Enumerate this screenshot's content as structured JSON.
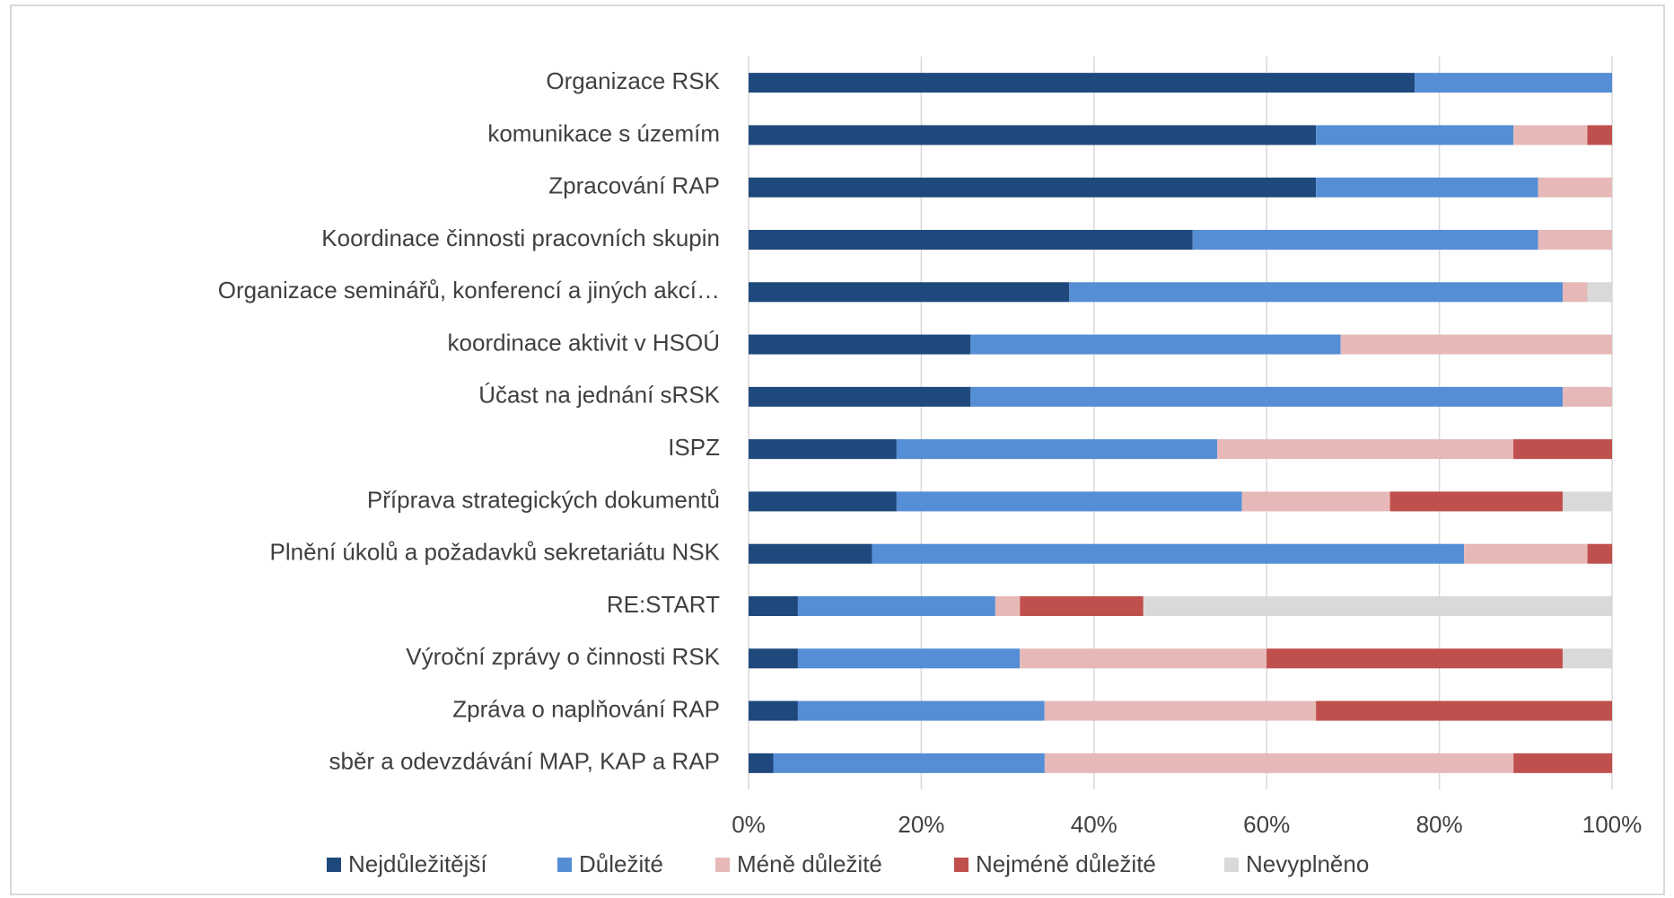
{
  "chart_data": {
    "type": "stacked_barh",
    "categories": [
      "Organizace RSK",
      "komunikace s územím",
      "Zpracování RAP",
      "Koordinace činnosti pracovních skupin",
      "Organizace seminářů, konferencí a jiných akcí…",
      "koordinace aktivit v HSOÚ",
      "Účast na jednání sRSK",
      "ISPZ",
      "Příprava strategických dokumentů",
      "Plnění úkolů a požadavků sekretariátu NSK",
      "RE:START",
      "Výroční zprávy o činnosti RSK",
      "Zpráva o naplňování RAP",
      "sběr a odevzdávání MAP, KAP a RAP"
    ],
    "series": [
      {
        "name": "Nejdůležitější",
        "color": "#1f497d",
        "values": [
          77.14,
          65.71,
          65.71,
          51.43,
          37.14,
          25.71,
          25.71,
          17.14,
          17.14,
          14.29,
          5.71,
          5.71,
          5.71,
          2.86
        ]
      },
      {
        "name": "Důležité",
        "color": "#558ed5",
        "values": [
          22.86,
          22.86,
          25.71,
          40,
          57.14,
          42.86,
          68.57,
          37.14,
          40,
          68.57,
          22.86,
          25.71,
          28.57,
          31.43
        ]
      },
      {
        "name": "Méně důležité",
        "color": "#e6b9b8",
        "values": [
          0,
          8.57,
          8.57,
          8.57,
          2.86,
          31.43,
          5.71,
          34.29,
          17.14,
          14.29,
          2.86,
          28.57,
          31.43,
          54.29
        ]
      },
      {
        "name": "Nejméně důležité",
        "color": "#c0504d",
        "values": [
          0,
          2.86,
          0,
          0,
          0,
          0,
          0,
          11.43,
          20,
          2.86,
          14.29,
          34.29,
          34.29,
          11.43
        ]
      },
      {
        "name": "Nevyplněno",
        "color": "#d9d9d9",
        "values": [
          0,
          0,
          0,
          0,
          2.86,
          0,
          0,
          0,
          5.71,
          0,
          54.29,
          5.71,
          0,
          0
        ]
      }
    ],
    "xlim": [
      0,
      100
    ],
    "xticks": [
      {
        "value": 0,
        "label": "0%"
      },
      {
        "value": 20,
        "label": "20%"
      },
      {
        "value": 40,
        "label": "40%"
      },
      {
        "value": 60,
        "label": "60%"
      },
      {
        "value": 80,
        "label": "80%"
      },
      {
        "value": 100,
        "label": "100%"
      }
    ],
    "grid": true,
    "legend": "bottom"
  }
}
